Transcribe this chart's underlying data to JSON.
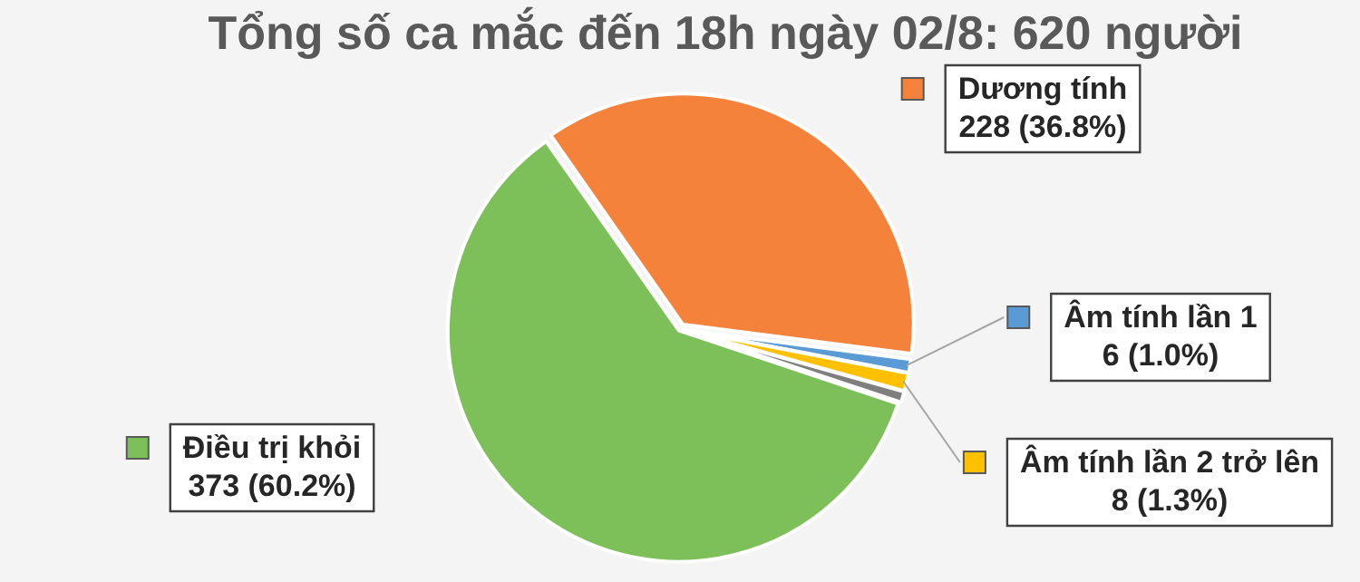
{
  "chart_data": {
    "type": "pie",
    "title": "Tổng số ca mắc đến 18h ngày 02/8: 620 người",
    "categories": [
      "Dương tính",
      "Âm tính lần 1",
      "Âm tính lần 2 trở lên",
      null,
      "Điều trị khỏi"
    ],
    "values": [
      228,
      6,
      8,
      5,
      373
    ],
    "value_labels": [
      "228 (36.8%)",
      "6 (1.0%)",
      "8 (1.3%)",
      null,
      "373 (60.2%)"
    ],
    "colors": [
      "#f4823a",
      "#5b9bd5",
      "#ffc000",
      "#7f7f7f",
      "#7dc05a"
    ],
    "legend": "right"
  }
}
